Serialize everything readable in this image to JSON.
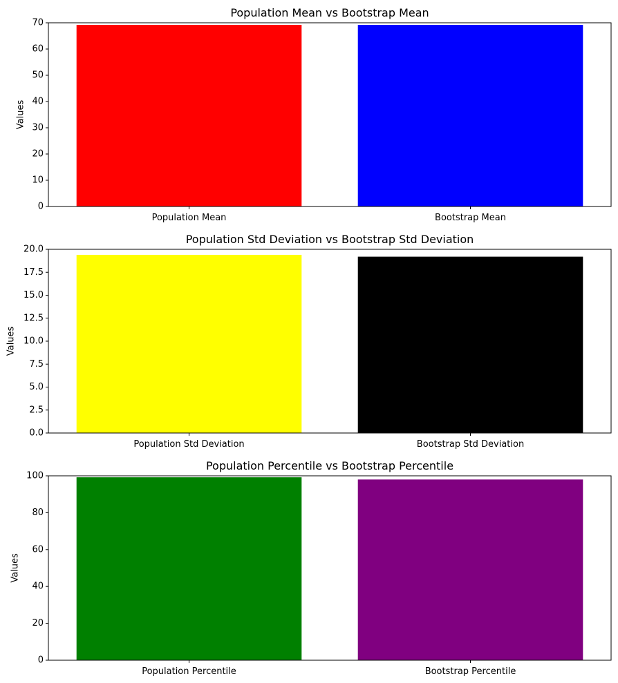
{
  "chart_data": [
    {
      "type": "bar",
      "title": "Population Mean vs Bootstrap Mean",
      "xlabel": "",
      "ylabel": "Values",
      "categories": [
        "Population Mean",
        "Bootstrap Mean"
      ],
      "values": [
        69.2,
        69.2
      ],
      "colors": [
        "#ff0000",
        "#0000ff"
      ],
      "ylim": [
        0,
        70
      ],
      "yticks": [
        0,
        10,
        20,
        30,
        40,
        50,
        60,
        70
      ],
      "ytick_labels": [
        "0",
        "10",
        "20",
        "30",
        "40",
        "50",
        "60",
        "70"
      ],
      "grid": false
    },
    {
      "type": "bar",
      "title": "Population Std Deviation vs Bootstrap Std Deviation",
      "xlabel": "",
      "ylabel": "Values",
      "categories": [
        "Population Std Deviation",
        "Bootstrap Std Deviation"
      ],
      "values": [
        19.4,
        19.2
      ],
      "colors": [
        "#ffff00",
        "#000000"
      ],
      "ylim": [
        0,
        20
      ],
      "yticks": [
        0,
        2.5,
        5,
        7.5,
        10,
        12.5,
        15,
        17.5,
        20
      ],
      "ytick_labels": [
        "0.0",
        "2.5",
        "5.0",
        "7.5",
        "10.0",
        "12.5",
        "15.0",
        "17.5",
        "20.0"
      ],
      "grid": false
    },
    {
      "type": "bar",
      "title": "Population Percentile vs Bootstrap Percentile",
      "xlabel": "",
      "ylabel": "Values",
      "categories": [
        "Population Percentile",
        "Bootstrap Percentile"
      ],
      "values": [
        99.2,
        98.0
      ],
      "colors": [
        "#008000",
        "#800080"
      ],
      "ylim": [
        0,
        100
      ],
      "yticks": [
        0,
        20,
        40,
        60,
        80,
        100
      ],
      "ytick_labels": [
        "0",
        "20",
        "40",
        "60",
        "80",
        "100"
      ],
      "grid": false
    }
  ]
}
